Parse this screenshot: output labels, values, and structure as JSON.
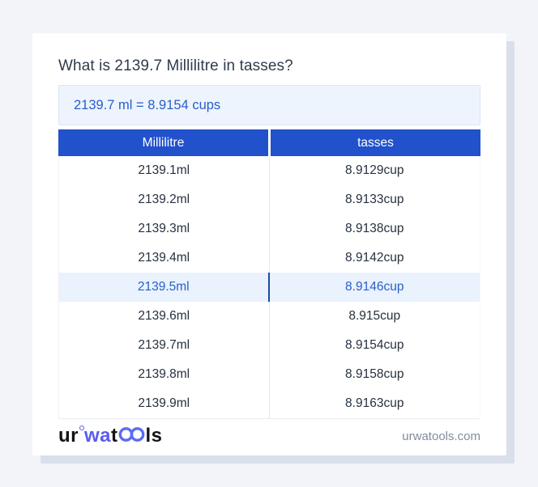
{
  "page": {
    "title": "What is 2139.7 Millilitre in tasses?"
  },
  "result": {
    "text": "2139.7 ml = 8.9154 cups"
  },
  "table": {
    "headers": [
      "Millilitre",
      "tasses"
    ],
    "rows": [
      {
        "ml": "2139.1ml",
        "cup": "8.9129cup",
        "highlight": false
      },
      {
        "ml": "2139.2ml",
        "cup": "8.9133cup",
        "highlight": false
      },
      {
        "ml": "2139.3ml",
        "cup": "8.9138cup",
        "highlight": false
      },
      {
        "ml": "2139.4ml",
        "cup": "8.9142cup",
        "highlight": false
      },
      {
        "ml": "2139.5ml",
        "cup": "8.9146cup",
        "highlight": true
      },
      {
        "ml": "2139.6ml",
        "cup": "8.915cup",
        "highlight": false
      },
      {
        "ml": "2139.7ml",
        "cup": "8.9154cup",
        "highlight": false
      },
      {
        "ml": "2139.8ml",
        "cup": "8.9158cup",
        "highlight": false
      },
      {
        "ml": "2139.9ml",
        "cup": "8.9163cup",
        "highlight": false
      }
    ]
  },
  "footer": {
    "logo": {
      "part1": "ur",
      "part2": "wa",
      "part3": "t",
      "part4": "ls"
    },
    "site": "urwatools.com"
  },
  "colors": {
    "page_background": "#f2f4f9",
    "card_background": "#ffffff",
    "card_shadow": "#d9dfeb",
    "header_bg": "#2151cb",
    "header_text": "#ffffff",
    "result_bg": "#edf4fd",
    "result_border": "#d9e6f7",
    "accent_blue": "#2a5ec9",
    "highlight_row_bg": "#e9f2fd",
    "highlight_divider": "#1a4c9f",
    "body_text": "#27313f",
    "title_text": "#2f3b4c",
    "footer_text": "#818c9c",
    "logo_blue": "#5b5cf0"
  }
}
